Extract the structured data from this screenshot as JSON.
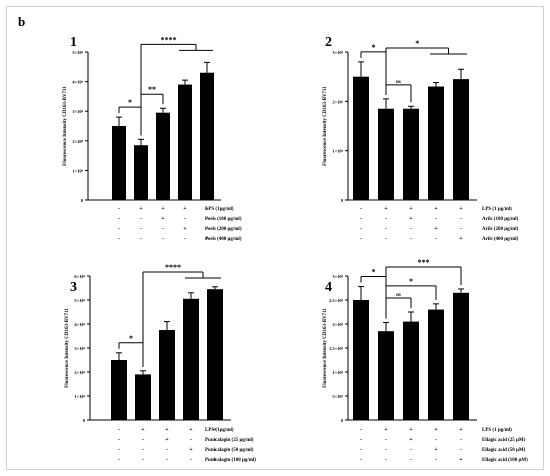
{
  "figure_label": "b",
  "chart_data": [
    {
      "type": "bar",
      "panel": "1",
      "ylabel": "Fluorescence Intensity CD163-BV711",
      "yticks": [
        "0",
        "1×10⁴",
        "2×10⁴",
        "3×10⁴",
        "4×10⁴",
        "5×10⁴"
      ],
      "ylim": [
        0,
        50000
      ],
      "values": [
        25000,
        18500,
        29500,
        39000,
        43000
      ],
      "errors": [
        3000,
        2000,
        1500,
        1500,
        3500
      ],
      "treatments": [
        {
          "label": "LPS (1µg/ml)",
          "marks": [
            "-",
            "+",
            "+",
            "+",
            "+"
          ]
        },
        {
          "label": "Peels (100 µg/ml)",
          "marks": [
            "-",
            "-",
            "+",
            "-",
            "-"
          ]
        },
        {
          "label": "Peels (200 µg/ml)",
          "marks": [
            "-",
            "-",
            "-",
            "+",
            "-"
          ]
        },
        {
          "label": "Peels (400 µg/ml)",
          "marks": [
            "-",
            "-",
            "-",
            "-",
            "+"
          ]
        }
      ],
      "significance": [
        {
          "from": 0,
          "to": 1,
          "label": "*"
        },
        {
          "from": 1,
          "to": 2,
          "label": "**"
        },
        {
          "from": 1,
          "to": [
            3,
            4
          ],
          "label": "****"
        }
      ]
    },
    {
      "type": "bar",
      "panel": "2",
      "ylabel": "Fluorescence Intensity CD163-BV711",
      "yticks": [
        "0",
        "1×10⁴",
        "2×10⁴",
        "3×10⁴"
      ],
      "ylim": [
        0,
        30000
      ],
      "values": [
        25000,
        18500,
        18500,
        23000,
        24500
      ],
      "errors": [
        3000,
        2000,
        500,
        800,
        2000
      ],
      "treatments": [
        {
          "label": "LPS (1 µg/ml)",
          "marks": [
            "-",
            "+",
            "+",
            "+",
            "+"
          ]
        },
        {
          "label": "Arils (100 µg/ml)",
          "marks": [
            "-",
            "-",
            "+",
            "-",
            "-"
          ]
        },
        {
          "label": "Arils (200 µg/ml)",
          "marks": [
            "-",
            "-",
            "-",
            "+",
            "-"
          ]
        },
        {
          "label": "Arils (400 µg/ml)",
          "marks": [
            "-",
            "-",
            "-",
            "-",
            "+"
          ]
        }
      ],
      "significance": [
        {
          "from": 0,
          "to": 1,
          "label": "*"
        },
        {
          "from": 1,
          "to": 2,
          "label": "ns"
        },
        {
          "from": 1,
          "to": [
            3,
            4
          ],
          "label": "*"
        }
      ]
    },
    {
      "type": "bar",
      "panel": "3",
      "ylabel": "Fluorescence Intensity CD163-BV711",
      "yticks": [
        "0",
        "1×10⁴",
        "2×10⁴",
        "3×10⁴",
        "4×10⁴",
        "5×10⁴",
        "6×10⁴"
      ],
      "ylim": [
        0,
        60000
      ],
      "values": [
        25000,
        19000,
        37500,
        50500,
        54500
      ],
      "errors": [
        3000,
        1500,
        3500,
        2500,
        1000
      ],
      "treatments": [
        {
          "label": "LPS (1µg/ml)",
          "marks": [
            "-",
            "+",
            "+",
            "+",
            "+"
          ]
        },
        {
          "label": "Punicalagin (25 µg/ml)",
          "marks": [
            "-",
            "-",
            "+",
            "-",
            "-"
          ]
        },
        {
          "label": "Punicalagin (50 µg/ml)",
          "marks": [
            "-",
            "-",
            "-",
            "+",
            "-"
          ]
        },
        {
          "label": "Punicalagin (100 µg/ml)",
          "marks": [
            "-",
            "-",
            "-",
            "-",
            "+"
          ]
        }
      ],
      "significance": [
        {
          "from": 0,
          "to": 1,
          "label": "*"
        },
        {
          "from": 1,
          "to": [
            3,
            4
          ],
          "label": "****"
        }
      ]
    },
    {
      "type": "bar",
      "panel": "4",
      "ylabel": "Fluorescence Intensity CD163-BV711",
      "yticks": [
        "0",
        "5×10³",
        "1×10⁴",
        "1.5×10⁴",
        "2×10⁴",
        "2.5×10⁴",
        "3×10⁴"
      ],
      "ylim": [
        0,
        30000
      ],
      "values": [
        25000,
        18500,
        20500,
        23000,
        26500
      ],
      "errors": [
        2800,
        1800,
        2000,
        1200,
        800
      ],
      "treatments": [
        {
          "label": "LPS (1 µg/ml)",
          "marks": [
            "-",
            "+",
            "+",
            "+",
            "+"
          ]
        },
        {
          "label": "Ellagic acid (25 µM)",
          "marks": [
            "-",
            "-",
            "+",
            "-",
            "-"
          ]
        },
        {
          "label": "Ellagic acid (50 µM)",
          "marks": [
            "-",
            "-",
            "-",
            "+",
            "-"
          ]
        },
        {
          "label": "Ellagic acid (100 µM)",
          "marks": [
            "-",
            "-",
            "-",
            "-",
            "+"
          ]
        }
      ],
      "significance": [
        {
          "from": 0,
          "to": 1,
          "label": "*"
        },
        {
          "from": 1,
          "to": 2,
          "label": "ns"
        },
        {
          "from": 1,
          "to": 3,
          "label": "*"
        },
        {
          "from": 1,
          "to": 4,
          "label": "***"
        }
      ]
    }
  ]
}
